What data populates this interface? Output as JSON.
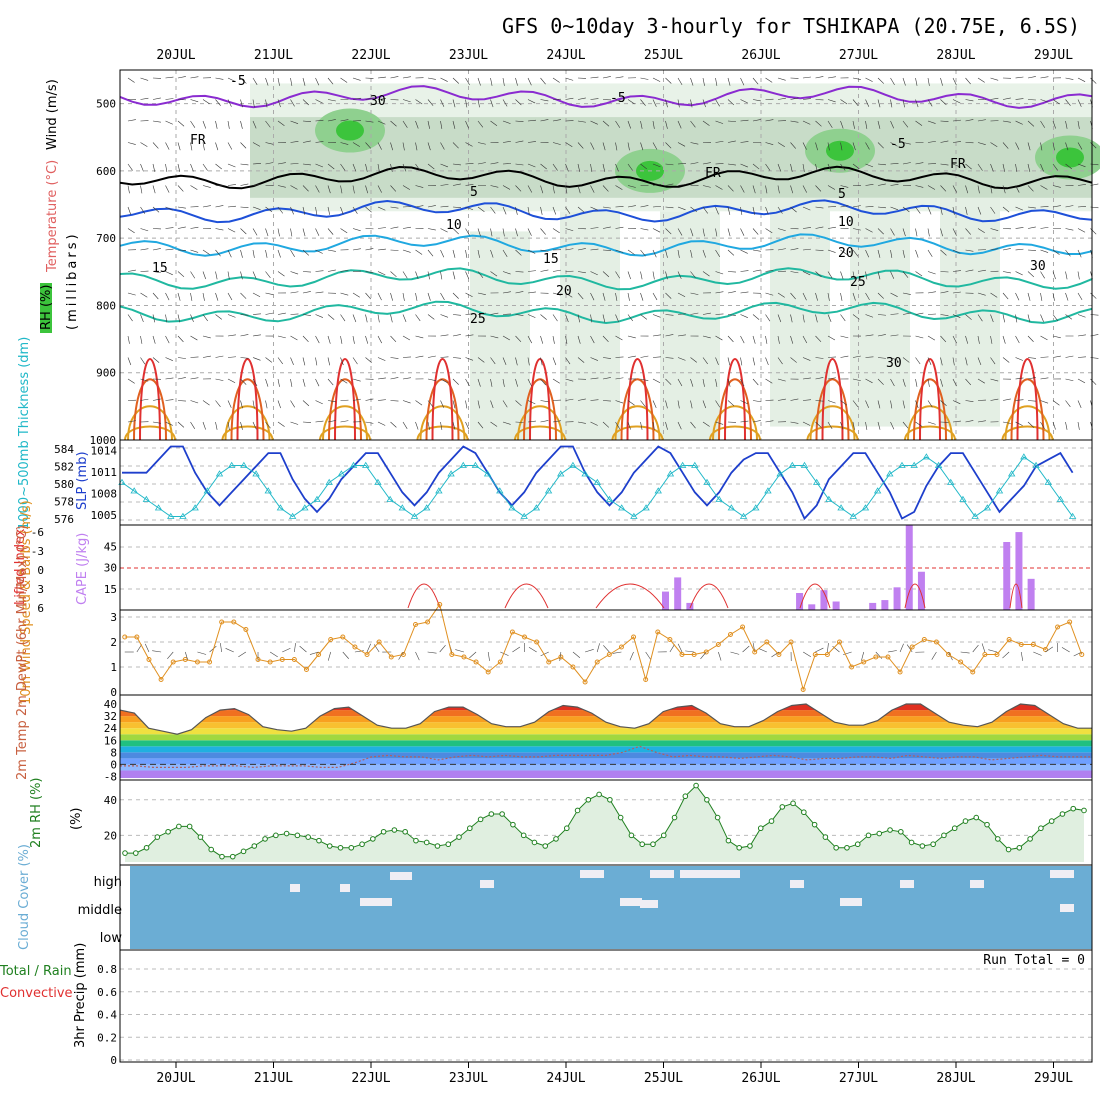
{
  "title": "GFS 0~10day 3-hourly for TSHIKAPA (20.75E, 6.5S)",
  "dates": [
    "20JUL",
    "21JUL",
    "22JUL",
    "23JUL",
    "24JUL",
    "25JUL",
    "26JUL",
    "27JUL",
    "28JUL",
    "29JUL"
  ],
  "colors": {
    "rh_green": "#3cc43c",
    "temp_purple": "#8a2bd0",
    "temp_blue": "#1e50d8",
    "temp_cyan": "#20a8e0",
    "temp_teal": "#20b8a0",
    "temp_orange": "#e0a020",
    "temp_red": "#e03030",
    "thickness": "#20b8c8",
    "slp": "#1e3fcc",
    "cape": "#c080f0",
    "lifted": "#e03030",
    "wind": "#e09020",
    "cloud": "#6badd4",
    "rh2m": "#208020"
  },
  "panels": {
    "upper": {
      "ylabel_wind": "Wind (m/s)",
      "ylabel_temp": "Temperature (°C)",
      "ylabel_rh": "RH (%)",
      "ylabel_mb": "(millibars)",
      "contour_labels": [
        "-5",
        "-5",
        "-5",
        "FR",
        "FR",
        "FR",
        "5",
        "5",
        "10",
        "10",
        "15",
        "15",
        "20",
        "20",
        "25",
        "25",
        "30",
        "30",
        "30"
      ]
    },
    "slp": {
      "ylabel_left": "1000~500mb Thickness (dm)",
      "ylabel_right": "SLP (mb)"
    },
    "cape": {
      "ylabel_left": "Lifted Index",
      "ylabel_right": "CAPE (J/kg)"
    },
    "wind": {
      "ylabel": "10m Wind Speed & Barbs (m/s)"
    },
    "temp": {
      "ylabel": "2m Temp 2m DewPt (6hr Min/Max) (°C)"
    },
    "rh": {
      "ylabel": "2m RH (%)"
    },
    "cloud": {
      "ylabel": "Cloud Cover (%)",
      "levels": [
        "high",
        "middle",
        "low"
      ]
    },
    "precip": {
      "ylabel_total": "Total / Rain",
      "ylabel_conv": "Convective",
      "ylabel": "3hr Precip (mm)",
      "run_total": "Run Total = 0"
    }
  },
  "chart_data": [
    {
      "type": "heatmap",
      "title": "GFS 0~10day 3-hourly for TSHIKAPA (20.75E, 6.5S)",
      "ylabel": "(millibars)",
      "y_ticks": [
        500,
        600,
        700,
        800,
        900,
        1000
      ],
      "ylim": [
        1000,
        450
      ],
      "contours_temperature_c": [
        -5,
        0,
        5,
        10,
        15,
        20,
        25
      ],
      "freezing_level_mb_approx": 605
    },
    {
      "type": "line",
      "series": [
        {
          "name": "SLP (mb)",
          "ylim": [
            1003,
            1016
          ],
          "y_ticks": [
            1005,
            1008,
            1011,
            1014
          ],
          "values": [
            1011,
            1011,
            1011,
            1013,
            1015,
            1015,
            1011,
            1008,
            1006,
            1008,
            1010,
            1012,
            1014,
            1014,
            1010,
            1007,
            1005,
            1007,
            1010,
            1012,
            1014,
            1014,
            1011,
            1008,
            1006,
            1008,
            1011,
            1013,
            1015,
            1014,
            1011,
            1008,
            1006,
            1008,
            1011,
            1013,
            1015,
            1015,
            1011,
            1008,
            1006,
            1008,
            1011,
            1013,
            1015,
            1014,
            1011,
            1008,
            1006,
            1008,
            1011,
            1013,
            1014,
            1014,
            1011,
            1008,
            1004,
            1006,
            1010,
            1012,
            1014,
            1014,
            1011,
            1008,
            1004,
            1005,
            1009,
            1012,
            1014,
            1014,
            1011,
            1008,
            1005,
            1007,
            1009,
            1012,
            1013,
            1014,
            1011
          ]
        },
        {
          "name": "Thickness (dm)",
          "ylim": [
            575,
            585
          ],
          "y_ticks": [
            576,
            578,
            580,
            582,
            584
          ],
          "values": [
            580,
            579,
            578,
            577,
            576,
            576,
            577,
            579,
            581,
            582,
            582,
            581,
            579,
            577,
            576,
            577,
            578,
            580,
            581,
            582,
            582,
            580,
            578,
            577,
            576,
            577,
            579,
            581,
            582,
            582,
            581,
            579,
            577,
            576,
            577,
            579,
            581,
            582,
            581,
            580,
            578,
            577,
            576,
            577,
            579,
            581,
            582,
            582,
            580,
            578,
            577,
            576,
            577,
            579,
            581,
            582,
            582,
            580,
            578,
            577,
            576,
            577,
            579,
            581,
            582,
            582,
            583,
            582,
            580,
            578,
            576,
            577,
            579,
            581,
            583,
            582,
            580,
            578,
            576
          ]
        }
      ],
      "x_start": "19JUL 18Z",
      "interval_hours": 3
    },
    {
      "type": "bar",
      "series": [
        {
          "name": "CAPE (J/kg)",
          "y_ticks": [
            15,
            30,
            45
          ],
          "ylim": [
            0,
            60
          ],
          "values": [
            0,
            0,
            0,
            0,
            0,
            0,
            0,
            0,
            0,
            0,
            0,
            0,
            0,
            0,
            0,
            0,
            0,
            0,
            0,
            0,
            0,
            0,
            0,
            0,
            0,
            0,
            0,
            0,
            0,
            0,
            0,
            0,
            0,
            0,
            0,
            0,
            0,
            0,
            0,
            0,
            13,
            23,
            5,
            0,
            0,
            0,
            0,
            0,
            0,
            0,
            0,
            12,
            4,
            14,
            6,
            0,
            0,
            5,
            7,
            16,
            60,
            27,
            0,
            0,
            0,
            0,
            0,
            0,
            48,
            55,
            22,
            0,
            0,
            0,
            0,
            0,
            0,
            0,
            0,
            0,
            20,
            0
          ]
        },
        {
          "name": "Lifted Index",
          "y_ticks": [
            6,
            3,
            0,
            -3,
            -6
          ],
          "ylim": [
            6,
            -8
          ],
          "reference": 0
        }
      ]
    },
    {
      "type": "line",
      "name": "10m Wind Speed (m/s)",
      "ylim": [
        0,
        3.2
      ],
      "y_ticks": [
        0,
        1,
        2,
        3
      ],
      "values": [
        2.2,
        2.2,
        1.3,
        0.5,
        1.2,
        1.3,
        1.2,
        1.2,
        2.8,
        2.8,
        2.5,
        1.3,
        1.2,
        1.3,
        1.3,
        0.9,
        1.5,
        2.1,
        2.2,
        1.8,
        1.5,
        2.0,
        1.4,
        1.5,
        2.7,
        2.8,
        3.5,
        1.5,
        1.4,
        1.2,
        0.8,
        1.2,
        2.4,
        2.2,
        2.0,
        1.2,
        1.4,
        1.0,
        0.4,
        1.2,
        1.5,
        1.8,
        2.2,
        0.5,
        2.4,
        2.1,
        1.5,
        1.5,
        1.6,
        1.9,
        2.3,
        2.6,
        1.6,
        2.0,
        1.5,
        2.0,
        0.1,
        1.5,
        1.5,
        2.0,
        1.0,
        1.2,
        1.4,
        1.4,
        0.8,
        1.8,
        2.1,
        2.0,
        1.5,
        1.2,
        0.8,
        1.5,
        1.5,
        2.1,
        1.9,
        1.9,
        1.7,
        2.6,
        2.8,
        1.5,
        1.9,
        2.0,
        0.6,
        0.1,
        1.8,
        2.0,
        2.2,
        1.2,
        0.9
      ]
    },
    {
      "type": "area",
      "name": "2m Temp (°C)",
      "ylim": [
        -9,
        44
      ],
      "y_ticks": [
        40,
        32,
        24,
        16,
        8,
        0,
        -8
      ],
      "temp_values": [
        36,
        34,
        24,
        22,
        20,
        23,
        31,
        36,
        37,
        33,
        25,
        23,
        22,
        24,
        32,
        37,
        38,
        32,
        26,
        24,
        24,
        27,
        35,
        38,
        38,
        33,
        27,
        25,
        25,
        28,
        35,
        39,
        38,
        34,
        28,
        25,
        24,
        27,
        35,
        38,
        39,
        34,
        27,
        25,
        25,
        29,
        35,
        39,
        40,
        34,
        28,
        26,
        26,
        29,
        36,
        40,
        40,
        34,
        28,
        26,
        25,
        28,
        35,
        40,
        39,
        33,
        27,
        24,
        24
      ],
      "dewpoint_values": [
        -1,
        -1,
        -2,
        -2,
        -2,
        -1,
        -1,
        -1,
        -2,
        -1,
        -1,
        -1,
        -2,
        -2,
        1,
        5,
        6,
        5,
        5,
        3,
        5,
        6,
        5,
        6,
        5,
        5,
        6,
        6,
        6,
        6,
        8,
        12,
        8,
        5,
        6,
        5,
        5,
        4,
        5,
        6,
        5,
        3,
        4,
        4,
        5,
        5,
        4,
        6,
        5,
        4,
        5,
        5,
        3,
        4,
        5,
        6,
        5,
        5,
        5
      ]
    },
    {
      "type": "area",
      "name": "2m RH (%)",
      "ylim": [
        5,
        50
      ],
      "y_ticks": [
        20,
        40
      ],
      "values": [
        10,
        10,
        13,
        19,
        22,
        25,
        25,
        19,
        12,
        8,
        8,
        11,
        14,
        18,
        20,
        21,
        20,
        19,
        17,
        14,
        13,
        13,
        15,
        18,
        22,
        23,
        22,
        17,
        16,
        14,
        15,
        19,
        24,
        29,
        32,
        32,
        26,
        20,
        16,
        14,
        18,
        24,
        34,
        40,
        43,
        40,
        30,
        20,
        15,
        15,
        20,
        30,
        42,
        48,
        40,
        30,
        17,
        13,
        14,
        24,
        28,
        36,
        38,
        33,
        26,
        19,
        13,
        13,
        15,
        20,
        21,
        23,
        22,
        16,
        14,
        15,
        20,
        24,
        28,
        30,
        26,
        18,
        12,
        13,
        18,
        24,
        28,
        32,
        35,
        34
      ]
    },
    {
      "type": "heatmap",
      "name": "Cloud Cover (%)",
      "rows": [
        "high",
        "middle",
        "low"
      ]
    },
    {
      "type": "bar",
      "name": "3hr Precip (mm)",
      "ylim": [
        0,
        0.95
      ],
      "y_ticks": [
        0,
        0.2,
        0.4,
        0.6,
        0.8
      ],
      "values": [],
      "annotation": "Run Total = 0"
    }
  ]
}
